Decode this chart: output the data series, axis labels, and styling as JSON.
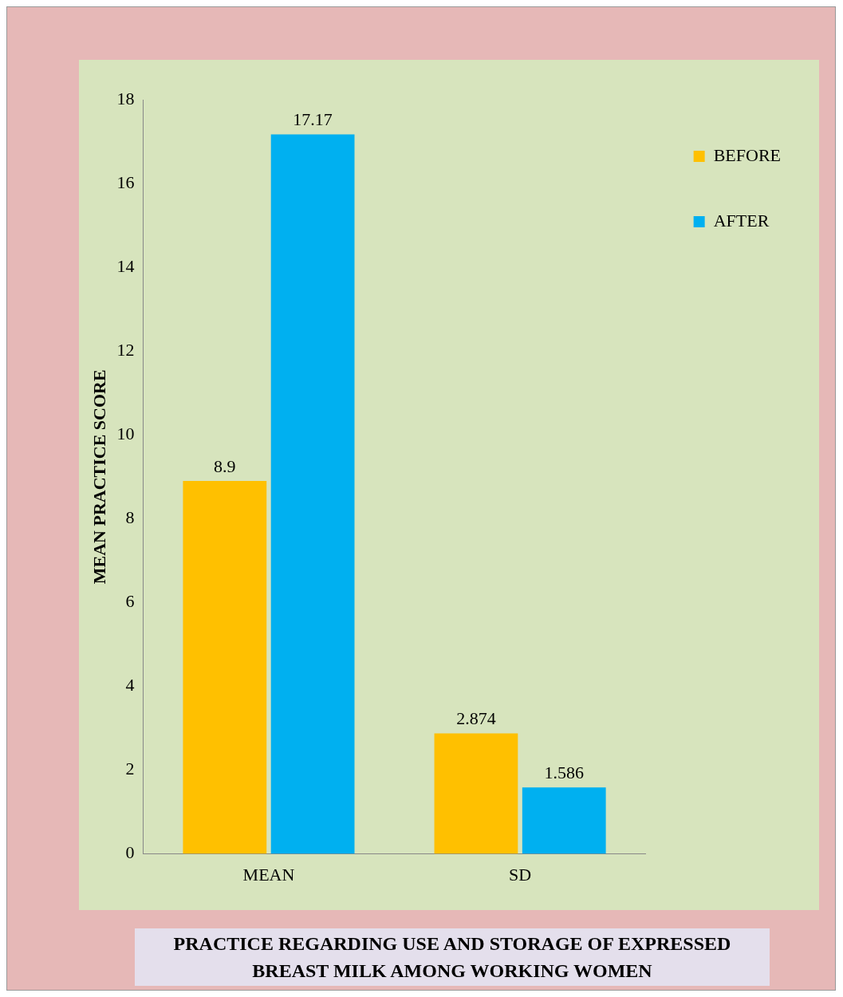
{
  "chart_data": {
    "type": "bar",
    "title": "PRACTICE REGARDING USE AND STORAGE OF EXPRESSED BREAST MILK AMONG WORKING WOMEN",
    "ylabel": "MEAN PRACTICE SCORE",
    "categories": [
      "MEAN",
      "SD"
    ],
    "series": [
      {
        "name": "BEFORE",
        "color": "#ffc000",
        "values": [
          8.9,
          2.874
        ]
      },
      {
        "name": "AFTER",
        "color": "#00b0f0",
        "values": [
          17.17,
          1.586
        ]
      }
    ],
    "ylim": [
      0,
      18
    ],
    "yticks": [
      0,
      2,
      4,
      6,
      8,
      10,
      12,
      14,
      16,
      18
    ],
    "grid": false,
    "legend": "top right",
    "data_labels": true
  }
}
